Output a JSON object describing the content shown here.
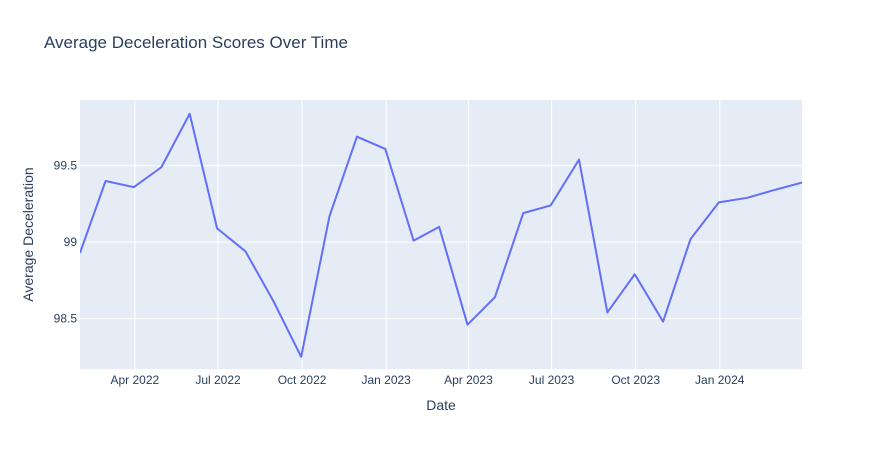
{
  "chart_data": {
    "type": "line",
    "title": "Average Deceleration Scores Over Time",
    "xlabel": "Date",
    "ylabel": "Average Deceleration",
    "x_ticks": [
      {
        "date": "2022-04-01",
        "label": "Apr 2022"
      },
      {
        "date": "2022-07-01",
        "label": "Jul 2022"
      },
      {
        "date": "2022-10-01",
        "label": "Oct 2022"
      },
      {
        "date": "2023-01-01",
        "label": "Jan 2023"
      },
      {
        "date": "2023-04-01",
        "label": "Apr 2023"
      },
      {
        "date": "2023-07-01",
        "label": "Jul 2023"
      },
      {
        "date": "2023-10-01",
        "label": "Oct 2023"
      },
      {
        "date": "2024-01-01",
        "label": "Jan 2024"
      }
    ],
    "y_ticks": [
      {
        "value": 98.5,
        "label": "98.5"
      },
      {
        "value": 99.0,
        "label": "99"
      },
      {
        "value": 99.5,
        "label": "99.5"
      }
    ],
    "xlim": [
      "2022-01-31",
      "2024-03-31"
    ],
    "ylim": [
      98.17,
      99.93
    ],
    "grid": true,
    "line_color": "#636efa",
    "plot_bg": "#e5ecf6",
    "series": [
      {
        "x": [
          "2022-01-31",
          "2022-02-28",
          "2022-03-31",
          "2022-04-30",
          "2022-05-31",
          "2022-06-30",
          "2022-07-31",
          "2022-08-31",
          "2022-09-30",
          "2022-10-31",
          "2022-11-30",
          "2022-12-31",
          "2023-01-31",
          "2023-02-28",
          "2023-03-31",
          "2023-04-30",
          "2023-05-31",
          "2023-06-30",
          "2023-07-31",
          "2023-08-31",
          "2023-09-30",
          "2023-10-31",
          "2023-11-30",
          "2023-12-31",
          "2024-01-31",
          "2024-02-29",
          "2024-03-31"
        ],
        "y": [
          98.93,
          99.4,
          99.36,
          99.49,
          99.84,
          99.09,
          98.94,
          98.61,
          98.25,
          99.17,
          99.69,
          99.61,
          99.01,
          99.1,
          98.46,
          98.64,
          99.19,
          99.24,
          99.54,
          98.54,
          98.79,
          98.48,
          99.02,
          99.26,
          99.29,
          99.34,
          99.39
        ]
      }
    ]
  }
}
